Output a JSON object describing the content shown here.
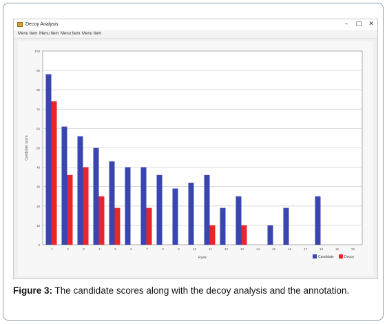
{
  "window": {
    "title": "Decoy Analysis",
    "menu": [
      "Menu Item",
      "Menu Item",
      "Menu Item",
      "Menu Item"
    ],
    "controls": {
      "minimize": "–",
      "maximize": "□",
      "close": "✕"
    }
  },
  "chart_data": {
    "type": "bar",
    "ylabel": "Candidate score",
    "xlabel": "Rank",
    "ylim": [
      0,
      100
    ],
    "yticks": [
      0,
      10,
      20,
      30,
      40,
      50,
      60,
      70,
      80,
      90,
      100
    ],
    "grid": true,
    "legend_position": "bottom-right",
    "categories": [
      "1",
      "2",
      "3",
      "4",
      "5",
      "6",
      "7",
      "8",
      "9",
      "10",
      "11",
      "12",
      "13",
      "14",
      "15",
      "16",
      "17",
      "18",
      "19",
      "20"
    ],
    "series": [
      {
        "name": "Candidate",
        "color": "#3a45b0",
        "values": [
          88,
          61,
          56,
          50,
          43,
          40,
          40,
          36,
          29,
          32,
          36,
          19,
          25,
          0,
          10,
          19,
          0,
          25,
          0,
          0
        ]
      },
      {
        "name": "Decoy",
        "color": "#e8242c",
        "values": [
          74,
          36,
          40,
          25,
          19,
          0,
          19,
          0,
          0,
          0,
          10,
          0,
          10,
          0,
          0,
          0,
          0,
          0,
          0,
          0
        ]
      }
    ]
  },
  "caption": {
    "label": "Figure 3:",
    "text": " The candidate scores along with the decoy analysis and the annotation."
  }
}
